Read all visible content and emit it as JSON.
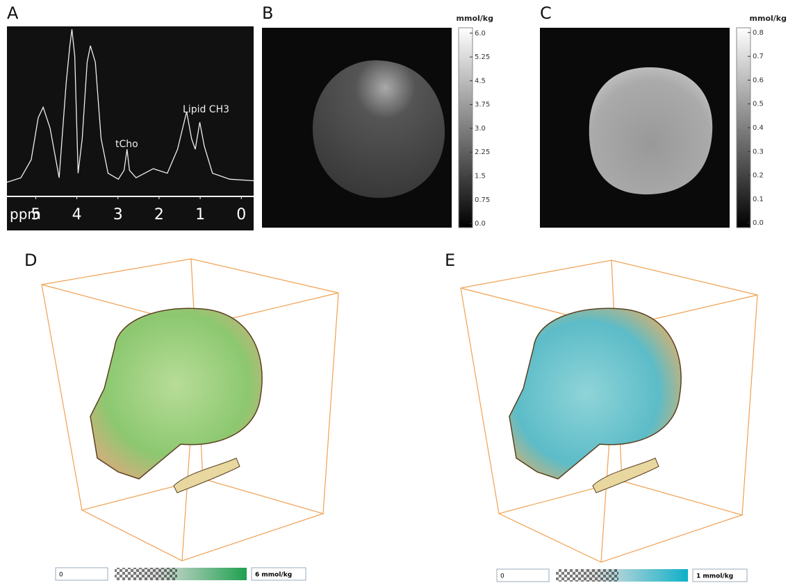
{
  "panels": {
    "a": {
      "letter": "A",
      "axis_label": "ppm",
      "annotations": [
        "tCho",
        "Lipid CH3"
      ],
      "xlim": [
        5.7,
        -0.3
      ],
      "ylim": [
        -11,
        101
      ],
      "xticks": [
        5,
        4,
        3,
        2,
        1,
        0
      ],
      "x": [
        5.7,
        5.36,
        5.11,
        4.94,
        4.82,
        4.65,
        4.43,
        4.26,
        4.17,
        4.12,
        4.05,
        3.97,
        3.87,
        3.75,
        3.67,
        3.55,
        3.41,
        3.24,
        2.99,
        2.85,
        2.78,
        2.72,
        2.56,
        2.14,
        1.8,
        1.55,
        1.33,
        1.21,
        1.12,
        1.01,
        0.9,
        0.7,
        0.28,
        -0.3
      ],
      "values": [
        -2,
        1,
        13,
        41,
        48,
        34,
        1,
        64,
        89,
        100,
        82,
        4,
        27,
        78,
        89,
        78,
        27,
        4,
        0,
        6,
        20,
        6,
        1,
        7,
        4,
        20,
        45,
        27,
        20,
        38,
        22,
        4,
        0,
        -1
      ]
    },
    "b": {
      "letter": "B",
      "unit": "mmol/kg",
      "clim": [
        -0.13,
        6.17
      ],
      "ticks": [
        {
          "value": 6,
          "label": "6.0"
        },
        5.25,
        4.5,
        3.75,
        {
          "value": 3,
          "label": "3.0"
        },
        2.25,
        1.5,
        0.75,
        {
          "value": 0,
          "label": "0.0"
        }
      ]
    },
    "c": {
      "letter": "C",
      "unit": "mmol/kg",
      "clim": [
        -0.02,
        0.82
      ],
      "ticks": [
        0.8,
        0.7,
        0.6,
        0.5,
        0.4,
        0.3,
        0.2,
        0.1,
        {
          "value": 0,
          "label": "0.0"
        }
      ]
    },
    "d": {
      "letter": "D",
      "min_label": "0",
      "max_label": "6 mmol/kg"
    },
    "e": {
      "letter": "E",
      "min_label": "0",
      "max_label": "1 mmol/kg"
    }
  }
}
